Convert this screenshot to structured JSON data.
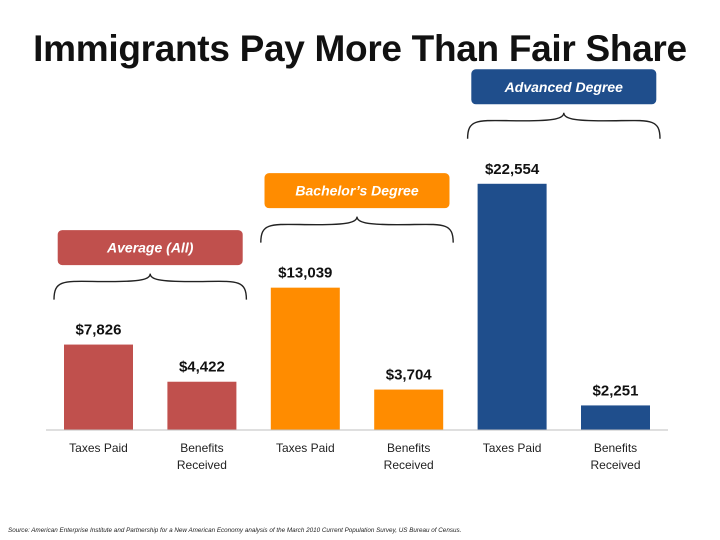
{
  "page": {
    "title": "Immigrants Pay More Than Fair Share"
  },
  "chart_data": {
    "type": "bar",
    "title": "Immigrants Pay More Than Fair Share",
    "ylim": [
      0,
      24000
    ],
    "bars": [
      {
        "category": [
          "Taxes Paid"
        ],
        "value": 7826,
        "label": "$7,826",
        "color": "#c0504d"
      },
      {
        "category": [
          "Benefits",
          "Received"
        ],
        "value": 4422,
        "label": "$4,422",
        "color": "#c0504d"
      },
      {
        "category": [
          "Taxes Paid"
        ],
        "value": 13039,
        "label": "$13,039",
        "color": "#ff8c00"
      },
      {
        "category": [
          "Benefits",
          "Received"
        ],
        "value": 3704,
        "label": "$3,704",
        "color": "#ff8c00"
      },
      {
        "category": [
          "Taxes Paid"
        ],
        "value": 22554,
        "label": "$22,554",
        "color": "#1f4e8c"
      },
      {
        "category": [
          "Benefits",
          "Received"
        ],
        "value": 2251,
        "label": "$2,251",
        "color": "#1f4e8c"
      }
    ],
    "groups": [
      {
        "name": "Average (All)",
        "color": "#c0504d",
        "bars": [
          0,
          1
        ]
      },
      {
        "name": "Bachelor’s Degree",
        "color": "#ff8c00",
        "bars": [
          2,
          3
        ]
      },
      {
        "name": "Advanced Degree",
        "color": "#1f4e8c",
        "bars": [
          4,
          5
        ]
      }
    ]
  },
  "footer": {
    "source": "Source: American Enterprise Institute and Partnership for a New American Economy analysis of the March 2010 Current Population Survey, US Bureau of Census."
  }
}
